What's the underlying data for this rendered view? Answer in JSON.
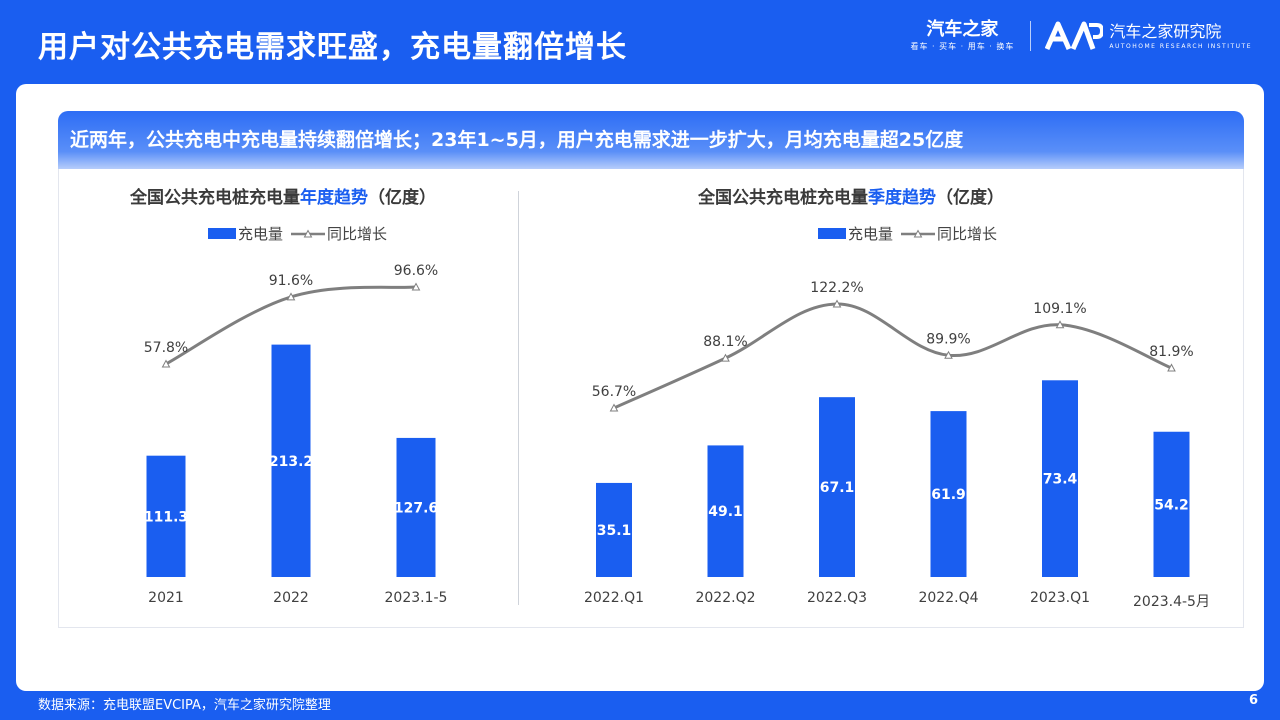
{
  "header": {
    "title": "用户对公共充电需求旺盛，充电量翻倍增长",
    "brand_name": "汽车之家",
    "brand_slogan": "看车 · 买车 · 用车 · 换车",
    "institute_name": "汽车之家研究院",
    "institute_name_en": "AUTOHOME RESEARCH INSTITUTE"
  },
  "headline": "近两年，公共充电中充电量持续翻倍增长；23年1~5月，用户充电需求进一步扩大，月均充电量超25亿度",
  "colors": {
    "brand": "#1a5ef0",
    "bar": "#1a5ef0",
    "line": "#7f7f7f"
  },
  "chart_data": [
    {
      "type": "bar",
      "title_pre": "全国公共充电桩充电量",
      "title_hl": "年度趋势",
      "title_post": "（亿度）",
      "legend_bar": "充电量",
      "legend_line": "同比增长",
      "categories": [
        "2021",
        "2022",
        "2023.1-5"
      ],
      "series": [
        {
          "name": "充电量",
          "type": "bar",
          "values": [
            111.3,
            213.2,
            127.6
          ],
          "labels": [
            "111.3",
            "213.2",
            "127.6"
          ]
        },
        {
          "name": "同比增长",
          "type": "line",
          "values": [
            57.8,
            91.6,
            96.6
          ],
          "labels": [
            "57.8%",
            "91.6%",
            "96.6%"
          ]
        }
      ]
    },
    {
      "type": "bar",
      "title_pre": "全国公共充电桩充电量",
      "title_hl": "季度趋势",
      "title_post": "（亿度）",
      "legend_bar": "充电量",
      "legend_line": "同比增长",
      "categories": [
        "2022.Q1",
        "2022.Q2",
        "2022.Q3",
        "2022.Q4",
        "2023.Q1",
        "2023.4-5月"
      ],
      "series": [
        {
          "name": "充电量",
          "type": "bar",
          "values": [
            35.1,
            49.1,
            67.1,
            61.9,
            73.4,
            54.2
          ],
          "labels": [
            "35.1",
            "49.1",
            "67.1",
            "61.9",
            "73.4",
            "54.2"
          ]
        },
        {
          "name": "同比增长",
          "type": "line",
          "values": [
            56.7,
            88.1,
            122.2,
            89.9,
            109.1,
            81.9
          ],
          "labels": [
            "56.7%",
            "88.1%",
            "122.2%",
            "89.9%",
            "109.1%",
            "81.9%"
          ]
        }
      ]
    }
  ],
  "footer": {
    "source": "数据来源：充电联盟EVCIPA，汽车之家研究院整理",
    "page_number": "6"
  }
}
